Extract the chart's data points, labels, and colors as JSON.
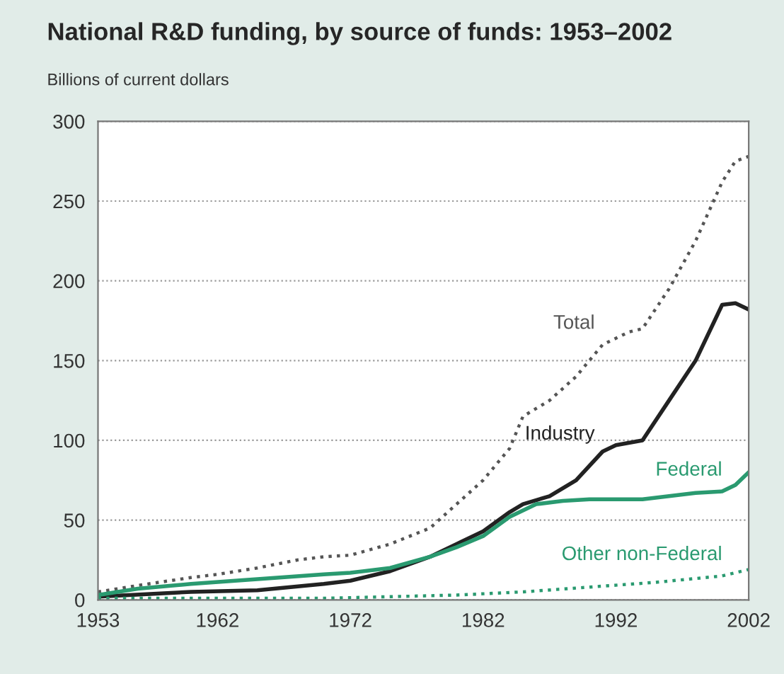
{
  "chart_data": {
    "type": "line",
    "title": "National R&D funding, by source of funds: 1953–2002",
    "ylabel": "Billions of current dollars",
    "xlim": [
      1953,
      2002
    ],
    "xticks": [
      1953,
      1962,
      1972,
      1982,
      1992,
      2002
    ],
    "ylim": [
      0,
      300
    ],
    "yticks": [
      0,
      50,
      100,
      150,
      200,
      250,
      300
    ],
    "grid": "y",
    "legend": false,
    "marker": "none",
    "series": [
      {
        "name": "Total",
        "color": "#555555",
        "line_style": "dotted",
        "x": [
          1953,
          1956,
          1960,
          1962,
          1965,
          1968,
          1970,
          1972,
          1975,
          1978,
          1980,
          1982,
          1984,
          1985,
          1987,
          1989,
          1991,
          1993,
          1994,
          1996,
          1998,
          2000,
          2001,
          2002
        ],
        "values": [
          5,
          9,
          14,
          16,
          20,
          25,
          27,
          28,
          35,
          45,
          60,
          75,
          95,
          115,
          125,
          140,
          160,
          168,
          170,
          195,
          225,
          262,
          275,
          278
        ]
      },
      {
        "name": "Industry",
        "color": "#222222",
        "line_style": "solid",
        "x": [
          1953,
          1960,
          1965,
          1970,
          1972,
          1975,
          1978,
          1980,
          1982,
          1984,
          1985,
          1987,
          1989,
          1991,
          1992,
          1994,
          1996,
          1998,
          2000,
          2001,
          2002
        ],
        "values": [
          2,
          5,
          6,
          10,
          12,
          18,
          27,
          35,
          43,
          55,
          60,
          65,
          75,
          93,
          97,
          100,
          125,
          150,
          185,
          186,
          182
        ]
      },
      {
        "name": "Federal",
        "color": "#2a9a70",
        "line_style": "solid",
        "x": [
          1953,
          1956,
          1960,
          1965,
          1970,
          1972,
          1975,
          1978,
          1980,
          1982,
          1984,
          1986,
          1988,
          1990,
          1994,
          1998,
          2000,
          2001,
          2002
        ],
        "values": [
          3,
          7,
          10,
          13,
          16,
          17,
          20,
          27,
          33,
          40,
          52,
          60,
          62,
          63,
          63,
          67,
          68,
          72,
          80
        ]
      },
      {
        "name": "Other non-Federal",
        "color": "#2a9a70",
        "line_style": "dotted",
        "x": [
          1953,
          1970,
          1980,
          1985,
          1990,
          1995,
          2000,
          2002
        ],
        "values": [
          1,
          1,
          3,
          5,
          8,
          11,
          15,
          19
        ]
      }
    ]
  }
}
